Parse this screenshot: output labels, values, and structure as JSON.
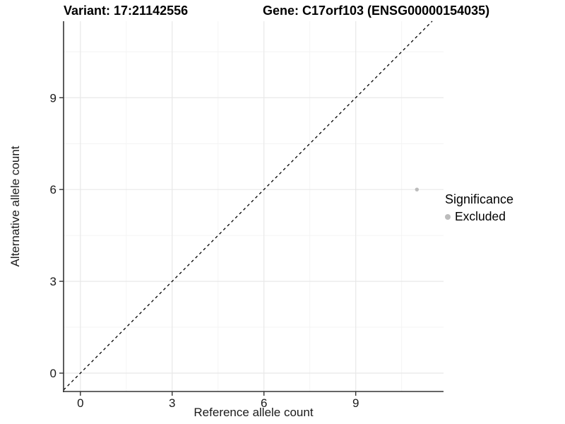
{
  "header": {
    "title_variant": "Variant: 17:21142556",
    "title_gene": "Gene: C17orf103 (ENSG00000154035)"
  },
  "legend": {
    "title": "Significance",
    "items": [
      {
        "label": "Excluded",
        "color": "#bcbcbc"
      }
    ]
  },
  "chart_data": {
    "type": "scatter",
    "title": "Variant: 17:21142556   Gene: C17orf103 (ENSG00000154035)",
    "xlabel": "Reference allele count",
    "ylabel": "Alternative allele count",
    "xlim": [
      -0.55,
      11.87
    ],
    "ylim": [
      -0.6,
      11.5
    ],
    "x_major_ticks": [
      0,
      3,
      6,
      9
    ],
    "y_major_ticks": [
      0,
      3,
      6,
      9
    ],
    "x_minor_ticks": [
      1.5,
      4.5,
      7.5,
      10.5
    ],
    "y_minor_ticks": [
      1.5,
      4.5,
      7.5,
      10.5
    ],
    "grid": true,
    "legend_position": "right",
    "identity_line": {
      "style": "dashed",
      "color": "#000000",
      "equation": "y = x"
    },
    "series": [
      {
        "name": "Excluded",
        "color": "#bcbcbc",
        "points": [
          {
            "x": 11,
            "y": 6
          }
        ]
      }
    ]
  },
  "colors": {
    "background": "#ffffff",
    "axis_line": "#333333",
    "grid_major": "#e8e8e8",
    "grid_minor": "#f4f4f4",
    "tick_label": "#1a1a1a",
    "title_text": "#000000"
  }
}
